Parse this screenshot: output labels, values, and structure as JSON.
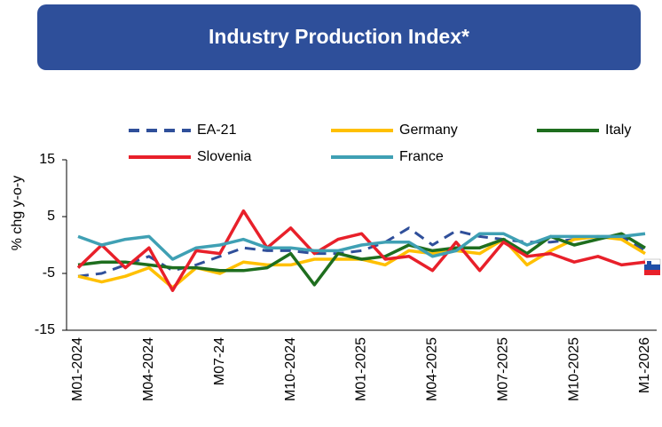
{
  "chart_data": {
    "type": "line",
    "title": "Industry Production Index*",
    "y_label": "% chg y-o-y",
    "categories": [
      "M01-2024",
      null,
      null,
      "M04-2024",
      null,
      null,
      "M07-24",
      null,
      null,
      "M10-2024",
      null,
      null,
      "M01-2025",
      null,
      null,
      "M04-2025",
      null,
      null,
      "M07-2025",
      null,
      null,
      "M10-2025",
      null,
      null,
      "M1-2026"
    ],
    "ylim": [
      -15,
      15
    ],
    "yticks": [
      -15,
      -5,
      5,
      15
    ],
    "series": [
      {
        "name": "EA-21",
        "color": "#2f4f9a",
        "dashed": true,
        "values": [
          -5.5,
          -5,
          -3.5,
          -2,
          -4.5,
          -3.5,
          -2,
          -0.5,
          -1,
          -1,
          -1.5,
          -1.5,
          -1,
          0.5,
          3,
          0,
          2.5,
          1.5,
          1,
          0.5,
          0.5,
          1,
          1.5,
          1.5,
          -1
        ]
      },
      {
        "name": "Germany",
        "color": "#ffc000",
        "values": [
          -5.5,
          -6.5,
          -5.5,
          -4,
          -7.5,
          -4,
          -5,
          -3,
          -3.5,
          -3.5,
          -2.5,
          -2.5,
          -2.5,
          -3.5,
          -1,
          -1.5,
          -1,
          -1.5,
          1,
          -3.5,
          -1,
          1,
          1.5,
          1,
          -1.5
        ]
      },
      {
        "name": "Italy",
        "color": "#1e6e1e",
        "values": [
          -3.5,
          -3,
          -3,
          -3.5,
          -4,
          -4,
          -4.5,
          -4.5,
          -4,
          -1.5,
          -7,
          -1.5,
          -2.5,
          -2,
          0,
          -1,
          -0.5,
          -0.5,
          1,
          -1.5,
          1.5,
          0,
          1,
          2,
          -0.5
        ]
      },
      {
        "name": "Slovenia",
        "color": "#e8202a",
        "values": [
          -4,
          0,
          -4,
          -0.5,
          -8,
          -1,
          -1.5,
          6,
          -0.5,
          3,
          -1.5,
          1,
          2,
          -2.5,
          -2,
          -4.5,
          0.5,
          -4.5,
          0.5,
          -2,
          -1.5,
          -3,
          -2,
          -3.5,
          -3
        ]
      },
      {
        "name": "France",
        "color": "#3fa0b4",
        "values": [
          1.5,
          0,
          1,
          1.5,
          -2.5,
          -0.5,
          0,
          1,
          -0.5,
          -0.5,
          -1,
          -1,
          0,
          0.5,
          0.5,
          -2,
          -1,
          2,
          2,
          0,
          1.5,
          1.5,
          1.5,
          1.5,
          2
        ]
      }
    ]
  }
}
